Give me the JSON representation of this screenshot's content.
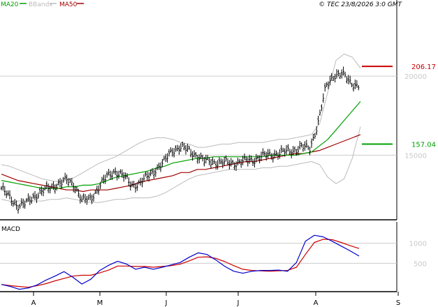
{
  "copyright": "© TEC 23/8/2026 3:0 GMT",
  "macd_title": "MACD",
  "colors": {
    "ma20": "#00a000",
    "bbands": "#bbbbbb",
    "ma50": "#a00000",
    "macd": "#0000cc",
    "signal": "#cc0000",
    "price": "#000000",
    "grid": "#cccccc",
    "level_high": "#cc0000",
    "level_low": "#00a000"
  },
  "chart_data": [
    {
      "type": "ohlc",
      "legend": [
        "MA20",
        "BBands",
        "MA50"
      ],
      "x_labels": [
        "A",
        "M",
        "J",
        "J",
        "A",
        "S"
      ],
      "y_ticks": [
        150.0,
        200.0
      ],
      "y_tick_labels": [
        "15000",
        "20000"
      ],
      "ylim": [
        110,
        242
      ],
      "grid": true,
      "levels": [
        {
          "label": "206.17",
          "value": 206.17,
          "color": "red"
        },
        {
          "label": "157.04",
          "value": 157.04,
          "color": "green"
        }
      ],
      "series": [
        {
          "name": "MA20",
          "values": [
            134,
            133,
            132,
            131,
            130,
            129,
            129,
            129,
            130,
            130,
            131,
            131,
            132,
            134,
            136,
            137,
            138,
            139,
            140,
            142,
            143,
            145,
            146,
            147,
            148,
            148,
            149,
            149,
            149,
            149,
            149,
            149,
            149,
            150,
            150,
            150,
            150,
            151,
            152,
            156,
            160,
            166,
            172,
            178,
            184
          ]
        },
        {
          "name": "MA50",
          "values": [
            138,
            136,
            134,
            133,
            132,
            131,
            130,
            129,
            128,
            128,
            127,
            128,
            128,
            128,
            129,
            130,
            131,
            133,
            134,
            135,
            136,
            137,
            139,
            139,
            141,
            141,
            142,
            143,
            144,
            145,
            146,
            146,
            147,
            148,
            149,
            150,
            151,
            151,
            152,
            153,
            155,
            157,
            159,
            161,
            163
          ]
        },
        {
          "name": "BBands upper",
          "values": [
            144,
            143,
            141,
            139,
            137,
            135,
            134,
            133,
            134,
            136,
            139,
            142,
            145,
            147,
            149,
            152,
            155,
            158,
            160,
            161,
            161,
            160,
            158,
            157,
            155,
            155,
            156,
            157,
            157,
            158,
            158,
            158,
            158,
            159,
            160,
            160,
            161,
            162,
            163,
            170,
            190,
            210,
            214,
            212,
            205
          ]
        },
        {
          "name": "BBands lower",
          "values": [
            122,
            121,
            121,
            121,
            121,
            121,
            122,
            122,
            123,
            122,
            121,
            120,
            120,
            121,
            122,
            122,
            123,
            123,
            123,
            124,
            126,
            129,
            132,
            135,
            137,
            138,
            139,
            140,
            141,
            141,
            141,
            141,
            142,
            142,
            143,
            143,
            144,
            145,
            146,
            144,
            136,
            132,
            135,
            148,
            168
          ]
        },
        {
          "name": "Price",
          "values": [
            129,
            123,
            118,
            119,
            124,
            127,
            129,
            132,
            134,
            131,
            121,
            122,
            130,
            136,
            140,
            137,
            131,
            132,
            136,
            141,
            145,
            153,
            155,
            153,
            150,
            146,
            146,
            145,
            145,
            145,
            146,
            147,
            149,
            150,
            151,
            152,
            153,
            155,
            154,
            170,
            193,
            201,
            201,
            196,
            194
          ]
        }
      ]
    },
    {
      "type": "line",
      "title": "MACD",
      "y_ticks": [
        500,
        1000
      ],
      "y_tick_labels": [
        "500",
        "1000"
      ],
      "ylim": [
        -175,
        1500
      ],
      "grid": true,
      "series": [
        {
          "name": "MACD",
          "values": [
            -30,
            -80,
            -150,
            -120,
            -40,
            80,
            180,
            290,
            150,
            -20,
            100,
            320,
            450,
            550,
            480,
            350,
            400,
            350,
            400,
            460,
            520,
            650,
            760,
            720,
            580,
            420,
            300,
            250,
            300,
            320,
            320,
            330,
            300,
            520,
            1050,
            1200,
            1160,
            1050,
            930,
            810,
            680
          ]
        },
        {
          "name": "Signal",
          "values": [
            -30,
            -60,
            -80,
            -100,
            -60,
            -10,
            60,
            120,
            180,
            200,
            200,
            260,
            330,
            430,
            430,
            420,
            420,
            400,
            420,
            440,
            480,
            560,
            650,
            660,
            620,
            540,
            440,
            350,
            320,
            310,
            300,
            310,
            320,
            400,
            720,
            1020,
            1100,
            1090,
            1020,
            940,
            870
          ]
        }
      ]
    }
  ]
}
